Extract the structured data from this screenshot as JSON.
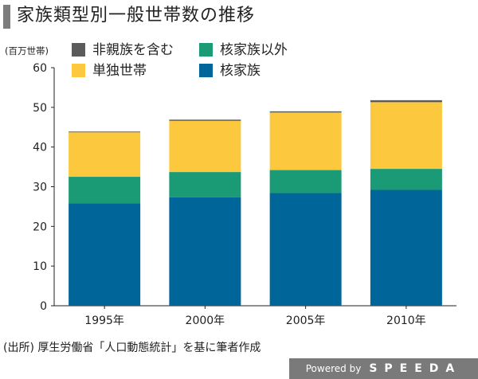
{
  "title": "家族類型別一般世帯数の推移",
  "unit_label": "(百万世帯)",
  "source_note": "(出所) 厚生労働省「人口動態統計」を基に筆者作成",
  "credit": {
    "powered_by": "Powered by",
    "brand": "SPEEDA"
  },
  "chart_data": {
    "type": "bar",
    "stacked": true,
    "title": "家族類型別一般世帯数の推移",
    "ylabel": "(百万世帯)",
    "xlabel": "",
    "ylim": [
      0,
      60
    ],
    "yticks": [
      0,
      10,
      20,
      30,
      40,
      50,
      60
    ],
    "grid": false,
    "legend_position": "top",
    "categories": [
      "1995年",
      "2000年",
      "2005年",
      "2010年"
    ],
    "series": [
      {
        "name": "核家族",
        "color": "#006699",
        "values": [
          25.8,
          27.3,
          28.4,
          29.2
        ]
      },
      {
        "name": "核家族以外",
        "color": "#1b9a76",
        "values": [
          6.7,
          6.4,
          5.8,
          5.3
        ]
      },
      {
        "name": "単独世帯",
        "color": "#fcc83d",
        "values": [
          11.2,
          12.9,
          14.5,
          16.8
        ]
      },
      {
        "name": "非親族を含む",
        "color": "#5b5b5b",
        "values": [
          0.2,
          0.3,
          0.3,
          0.5
        ]
      }
    ],
    "legend_order": [
      "非親族を含む",
      "核家族以外",
      "単独世帯",
      "核家族"
    ]
  }
}
